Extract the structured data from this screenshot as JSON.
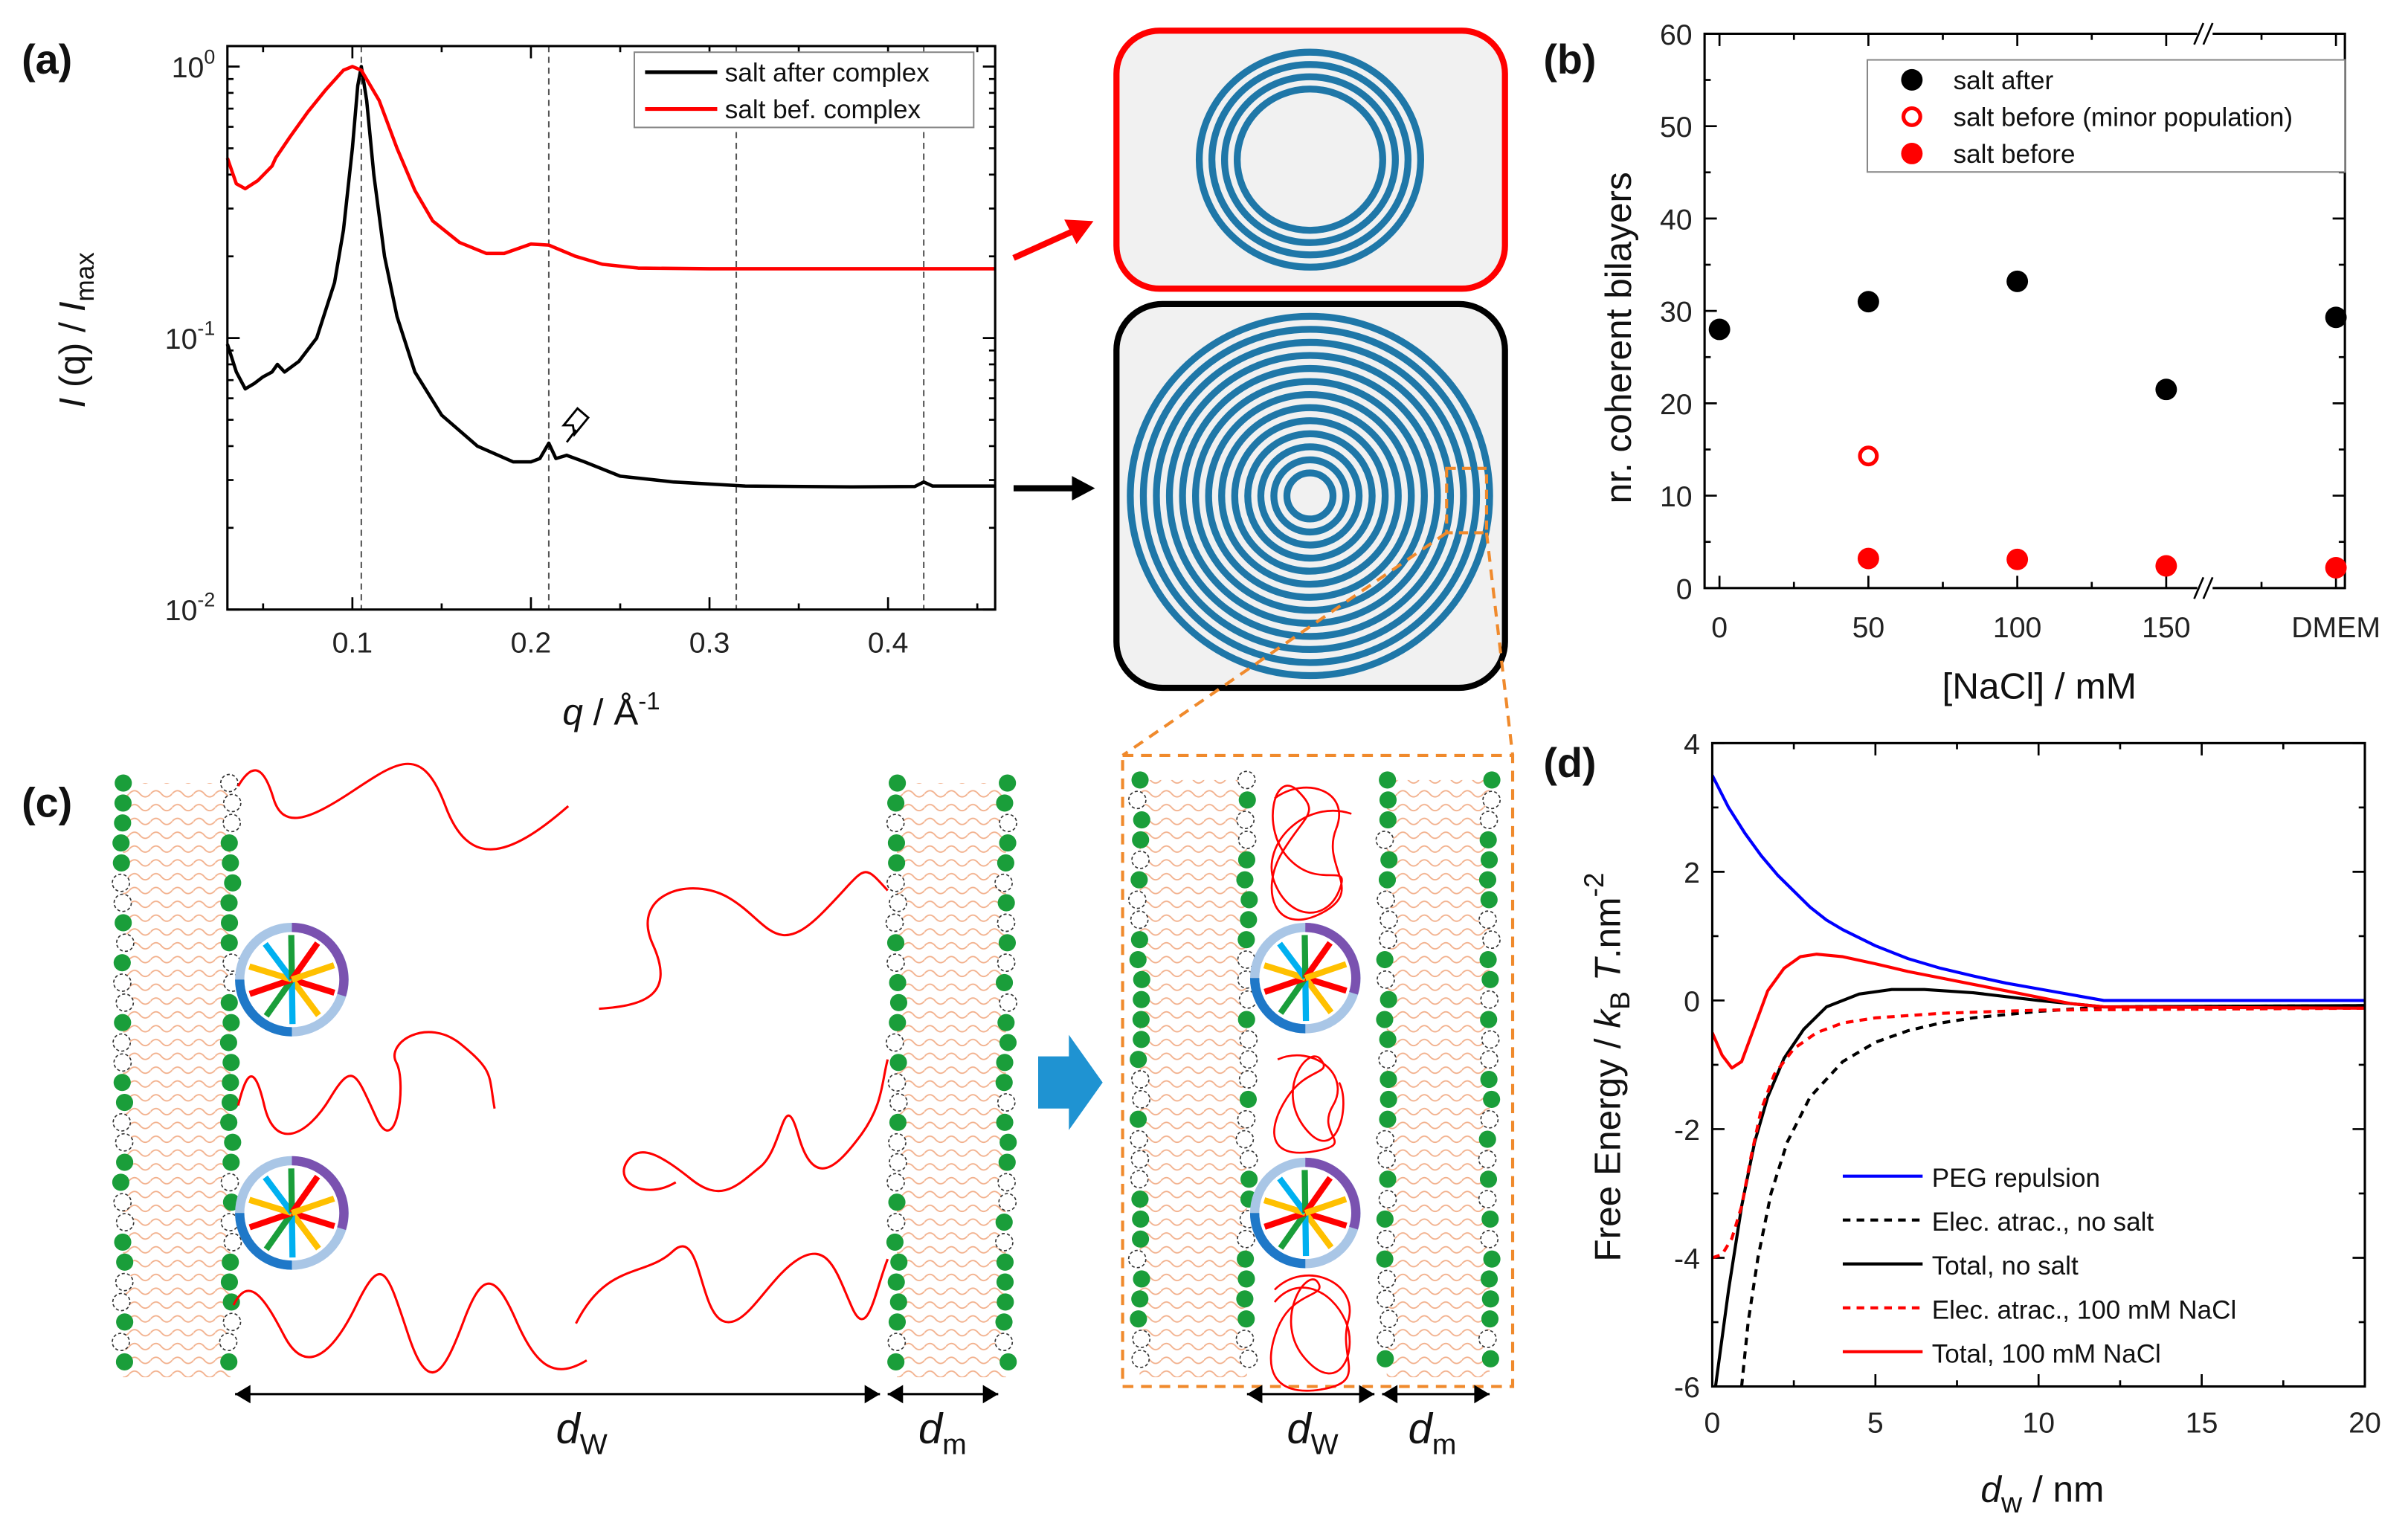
{
  "panels": {
    "a": "(a)",
    "b": "(b)",
    "c": "(c)",
    "d": "(d)"
  },
  "chart_data": [
    {
      "id": "a",
      "type": "line",
      "xlabel": {
        "var": "q",
        "sep": " / ",
        "unit": "Å",
        "exp": "-1"
      },
      "ylabel": {
        "i1": "I",
        "mid": " (q) / ",
        "i2": "I",
        "sub": "max"
      },
      "xlim": [
        0.03,
        0.46
      ],
      "ylim": [
        0.01,
        1.19
      ],
      "yscale": "log",
      "xticks": [
        "0.1",
        "0.2",
        "0.3",
        "0.4"
      ],
      "xtick_values": [
        0.1,
        0.2,
        0.3,
        0.4
      ],
      "yticks": [
        {
          "base": "10",
          "exp": "0",
          "value": 1
        },
        {
          "base": "10",
          "exp": "-1",
          "value": 0.1
        },
        {
          "base": "10",
          "exp": "-2",
          "value": 0.01
        }
      ],
      "reference_lines_q": [
        0.105,
        0.21,
        0.315,
        0.42
      ],
      "annotation": "arrow at secondary peak near q = 0.225",
      "legend_position": "top-right",
      "series": [
        {
          "name": "salt after complex",
          "color": "#000000",
          "points": [
            [
              0.03,
              0.095
            ],
            [
              0.035,
              0.075
            ],
            [
              0.04,
              0.065
            ],
            [
              0.045,
              0.068
            ],
            [
              0.05,
              0.072
            ],
            [
              0.055,
              0.075
            ],
            [
              0.058,
              0.08
            ],
            [
              0.062,
              0.075
            ],
            [
              0.07,
              0.082
            ],
            [
              0.08,
              0.1
            ],
            [
              0.09,
              0.16
            ],
            [
              0.095,
              0.25
            ],
            [
              0.1,
              0.5
            ],
            [
              0.103,
              0.85
            ],
            [
              0.105,
              1.0
            ],
            [
              0.108,
              0.75
            ],
            [
              0.112,
              0.4
            ],
            [
              0.118,
              0.2
            ],
            [
              0.125,
              0.12
            ],
            [
              0.135,
              0.075
            ],
            [
              0.15,
              0.052
            ],
            [
              0.17,
              0.04
            ],
            [
              0.19,
              0.035
            ],
            [
              0.2,
              0.035
            ],
            [
              0.205,
              0.036
            ],
            [
              0.21,
              0.041
            ],
            [
              0.214,
              0.036
            ],
            [
              0.22,
              0.037
            ],
            [
              0.23,
              0.035
            ],
            [
              0.25,
              0.031
            ],
            [
              0.28,
              0.0295
            ],
            [
              0.32,
              0.0285
            ],
            [
              0.38,
              0.0283
            ],
            [
              0.415,
              0.0284
            ],
            [
              0.42,
              0.0295
            ],
            [
              0.425,
              0.0285
            ],
            [
              0.46,
              0.0285
            ]
          ]
        },
        {
          "name": "salt bef. complex",
          "color": "#ff0000",
          "points": [
            [
              0.03,
              0.46
            ],
            [
              0.035,
              0.37
            ],
            [
              0.04,
              0.355
            ],
            [
              0.047,
              0.38
            ],
            [
              0.055,
              0.43
            ],
            [
              0.057,
              0.46
            ],
            [
              0.065,
              0.55
            ],
            [
              0.075,
              0.68
            ],
            [
              0.085,
              0.82
            ],
            [
              0.095,
              0.97
            ],
            [
              0.1,
              1.0
            ],
            [
              0.105,
              0.97
            ],
            [
              0.115,
              0.75
            ],
            [
              0.125,
              0.5
            ],
            [
              0.135,
              0.35
            ],
            [
              0.145,
              0.27
            ],
            [
              0.16,
              0.225
            ],
            [
              0.175,
              0.205
            ],
            [
              0.185,
              0.205
            ],
            [
              0.2,
              0.222
            ],
            [
              0.21,
              0.22
            ],
            [
              0.225,
              0.2
            ],
            [
              0.24,
              0.187
            ],
            [
              0.26,
              0.181
            ],
            [
              0.3,
              0.18
            ],
            [
              0.46,
              0.18
            ]
          ]
        }
      ]
    },
    {
      "id": "b",
      "type": "scatter",
      "xlabel": "[NaCl] / mM",
      "ylabel": "nr. coherent bilayers",
      "categories": [
        "0",
        "50",
        "100",
        "150",
        "DMEM"
      ],
      "category_x": [
        0,
        50,
        100,
        150,
        207
      ],
      "xlim": [
        -5,
        210
      ],
      "axis_break_at": 163,
      "ylim": [
        0,
        60
      ],
      "yticks": [
        "0",
        "10",
        "20",
        "30",
        "40",
        "50",
        "60"
      ],
      "legend_position": "top-right",
      "series": [
        {
          "name": "salt after",
          "color": "#000000",
          "marker": "filled-circle",
          "values": [
            28,
            31,
            33.2,
            21.5,
            29.3
          ]
        },
        {
          "name": "salt before (minor population)",
          "color": "#ff0000",
          "marker": "open-circle",
          "values": [
            null,
            14.3,
            null,
            null,
            null
          ]
        },
        {
          "name": "salt before",
          "color": "#ff0000",
          "marker": "filled-circle",
          "values": [
            null,
            3.2,
            3.1,
            2.4,
            2.2
          ]
        }
      ]
    },
    {
      "id": "d",
      "type": "line",
      "xlabel": {
        "var": "d",
        "sub": "w",
        "rest": " / nm"
      },
      "ylabel": {
        "pre": "Free Energy / ",
        "k": "k",
        "sub": "B",
        "t": " T",
        "rest": ".nm",
        "exp": "-2"
      },
      "xlim": [
        0,
        20
      ],
      "ylim": [
        -6,
        4
      ],
      "xticks": [
        "0",
        "5",
        "10",
        "15",
        "20"
      ],
      "yticks": [
        "-6",
        "-4",
        "-2",
        "0",
        "2",
        "4"
      ],
      "legend_position": "bottom-center",
      "series": [
        {
          "name": "PEG repulsion",
          "color": "#0000ff",
          "dash": false,
          "points": [
            [
              0,
              3.5
            ],
            [
              0.5,
              3.0
            ],
            [
              1,
              2.6
            ],
            [
              1.5,
              2.25
            ],
            [
              2,
              1.95
            ],
            [
              2.5,
              1.7
            ],
            [
              3,
              1.45
            ],
            [
              3.5,
              1.25
            ],
            [
              4,
              1.1
            ],
            [
              5,
              0.85
            ],
            [
              6,
              0.65
            ],
            [
              7,
              0.5
            ],
            [
              8,
              0.38
            ],
            [
              9,
              0.27
            ],
            [
              10,
              0.18
            ],
            [
              11,
              0.09
            ],
            [
              12,
              0.0
            ],
            [
              20,
              0.0
            ]
          ]
        },
        {
          "name": "Elec. atrac., no salt",
          "color": "#000000",
          "dash": true,
          "points": [
            [
              0.9,
              -6
            ],
            [
              1.1,
              -5
            ],
            [
              1.4,
              -4
            ],
            [
              1.8,
              -3
            ],
            [
              2.3,
              -2.2
            ],
            [
              3,
              -1.5
            ],
            [
              4,
              -0.95
            ],
            [
              5,
              -0.65
            ],
            [
              6,
              -0.47
            ],
            [
              7,
              -0.35
            ],
            [
              8,
              -0.27
            ],
            [
              10,
              -0.17
            ],
            [
              12,
              -0.1
            ],
            [
              20,
              -0.08
            ]
          ]
        },
        {
          "name": "Total, no salt",
          "color": "#000000",
          "dash": false,
          "points": [
            [
              0.1,
              -6
            ],
            [
              0.5,
              -4.5
            ],
            [
              0.9,
              -3.2
            ],
            [
              1.3,
              -2.2
            ],
            [
              1.7,
              -1.5
            ],
            [
              2.2,
              -0.9
            ],
            [
              2.8,
              -0.45
            ],
            [
              3.5,
              -0.1
            ],
            [
              4.5,
              0.1
            ],
            [
              5.5,
              0.17
            ],
            [
              6.5,
              0.17
            ],
            [
              8,
              0.12
            ],
            [
              10,
              0.0
            ],
            [
              12,
              -0.1
            ],
            [
              20,
              -0.08
            ]
          ]
        },
        {
          "name": "Elec. atrac., 100 mM NaCl",
          "color": "#ff0000",
          "dash": true,
          "points": [
            [
              0,
              -4
            ],
            [
              0.3,
              -3.95
            ],
            [
              0.6,
              -3.7
            ],
            [
              0.9,
              -3.2
            ],
            [
              1.2,
              -2.4
            ],
            [
              1.5,
              -1.7
            ],
            [
              1.9,
              -1.15
            ],
            [
              2.5,
              -0.75
            ],
            [
              3.2,
              -0.5
            ],
            [
              4,
              -0.35
            ],
            [
              5,
              -0.27
            ],
            [
              7,
              -0.2
            ],
            [
              10,
              -0.15
            ],
            [
              20,
              -0.12
            ]
          ]
        },
        {
          "name": "Total, 100 mM NaCl",
          "color": "#ff0000",
          "dash": false,
          "points": [
            [
              0,
              -0.5
            ],
            [
              0.3,
              -0.85
            ],
            [
              0.6,
              -1.05
            ],
            [
              0.9,
              -0.95
            ],
            [
              1.3,
              -0.4
            ],
            [
              1.7,
              0.15
            ],
            [
              2.2,
              0.5
            ],
            [
              2.7,
              0.68
            ],
            [
              3.2,
              0.72
            ],
            [
              4,
              0.68
            ],
            [
              5,
              0.57
            ],
            [
              6,
              0.45
            ],
            [
              7,
              0.35
            ],
            [
              8,
              0.25
            ],
            [
              9,
              0.15
            ],
            [
              10,
              0.05
            ],
            [
              11,
              -0.05
            ],
            [
              12,
              -0.1
            ],
            [
              20,
              -0.12
            ]
          ]
        }
      ]
    }
  ],
  "schematic": {
    "dw_label": {
      "var": "d",
      "sub": "W"
    },
    "dm_label": {
      "var": "d",
      "sub": "m"
    },
    "colors": {
      "bilayer_ring": "#1f77a8",
      "headgroup": "#1a9e3a",
      "polymer": "#ff0000",
      "zoom_box": "#f08a2c",
      "transition_arrow": "#1f93d2"
    }
  }
}
